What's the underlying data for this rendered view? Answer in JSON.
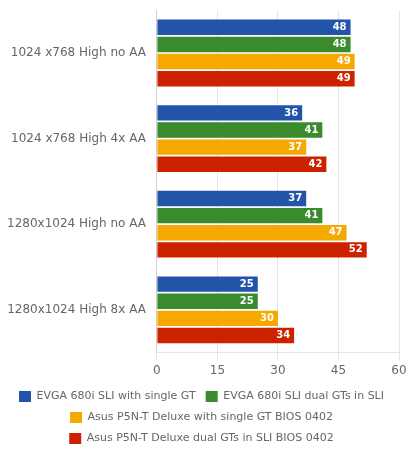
{
  "chart_data": {
    "type": "bar",
    "orientation": "horizontal",
    "categories": [
      "1024 x768 High no AA",
      "1024 x768 High 4x AA",
      "1280x1024 High no AA",
      "1280x1024 High 8x AA"
    ],
    "series": [
      {
        "name": "EVGA 680i SLI with single GT",
        "color": "#2255aa",
        "values": [
          48,
          36,
          37,
          25
        ]
      },
      {
        "name": "EVGA 680i SLI dual GTs in SLI",
        "color": "#3a8a2e",
        "values": [
          48,
          41,
          41,
          25
        ]
      },
      {
        "name": "Asus P5N-T Deluxe with single GT BIOS 0402",
        "color": "#f5a800",
        "values": [
          49,
          37,
          47,
          30
        ]
      },
      {
        "name": "Asus P5N-T Deluxe dual GTs in SLI BIOS 0402",
        "color": "#cc2200",
        "values": [
          49,
          42,
          52,
          34
        ]
      }
    ],
    "xlim": [
      0,
      60
    ],
    "xticks": [
      0,
      15,
      30,
      45,
      60
    ],
    "grid": true,
    "legend": "bottom",
    "data_labels": true
  }
}
